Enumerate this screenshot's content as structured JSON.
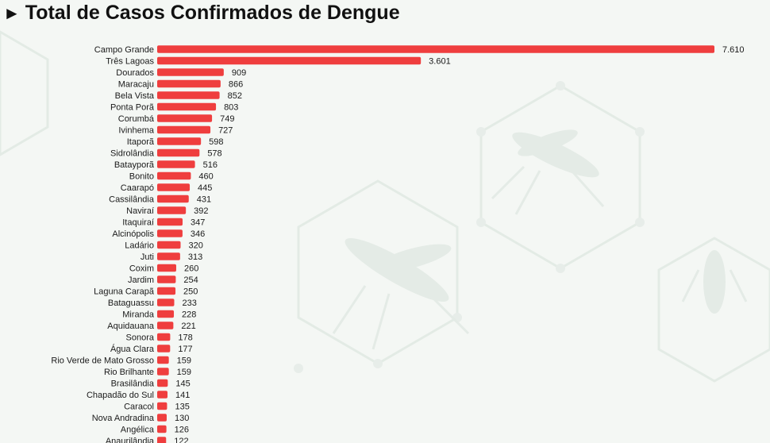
{
  "header": {
    "arrow": "►",
    "title": "Total de Casos Confirmados de Dengue"
  },
  "colors": {
    "bar": "#ef3e3e",
    "background": "#f4f7f4"
  },
  "chart_data": {
    "type": "bar",
    "orientation": "horizontal",
    "title": "Total de Casos Confirmados de Dengue",
    "categories": [
      "Campo Grande",
      "Três Lagoas",
      "Dourados",
      "Maracaju",
      "Bela Vista",
      "Ponta Porã",
      "Corumbá",
      "Ivinhema",
      "Itaporã",
      "Sidrolândia",
      "Batayporã",
      "Bonito",
      "Caarapó",
      "Cassilândia",
      "Naviraí",
      "Itaquiraí",
      "Alcinópolis",
      "Ladário",
      "Juti",
      "Coxim",
      "Jardim",
      "Laguna Carapã",
      "Bataguassu",
      "Miranda",
      "Aquidauana",
      "Sonora",
      "Água Clara",
      "Rio Verde de Mato Grosso",
      "Rio Brilhante",
      "Brasilândia",
      "Chapadão do Sul",
      "Caracol",
      "Nova Andradina",
      "Angélica",
      "Anaurilândia"
    ],
    "values": [
      7610,
      3601,
      909,
      866,
      852,
      803,
      749,
      727,
      598,
      578,
      516,
      460,
      445,
      431,
      392,
      347,
      346,
      320,
      313,
      260,
      254,
      250,
      233,
      228,
      221,
      178,
      177,
      159,
      159,
      145,
      141,
      135,
      130,
      126,
      122
    ],
    "value_labels": [
      "7.610",
      "3.601",
      "909",
      "866",
      "852",
      "803",
      "749",
      "727",
      "598",
      "578",
      "516",
      "460",
      "445",
      "431",
      "392",
      "347",
      "346",
      "320",
      "313",
      "260",
      "254",
      "250",
      "233",
      "228",
      "221",
      "178",
      "177",
      "159",
      "159",
      "145",
      "141",
      "135",
      "130",
      "126",
      "122"
    ],
    "xlim": [
      0,
      7610
    ],
    "grid": false,
    "legend": "none"
  }
}
